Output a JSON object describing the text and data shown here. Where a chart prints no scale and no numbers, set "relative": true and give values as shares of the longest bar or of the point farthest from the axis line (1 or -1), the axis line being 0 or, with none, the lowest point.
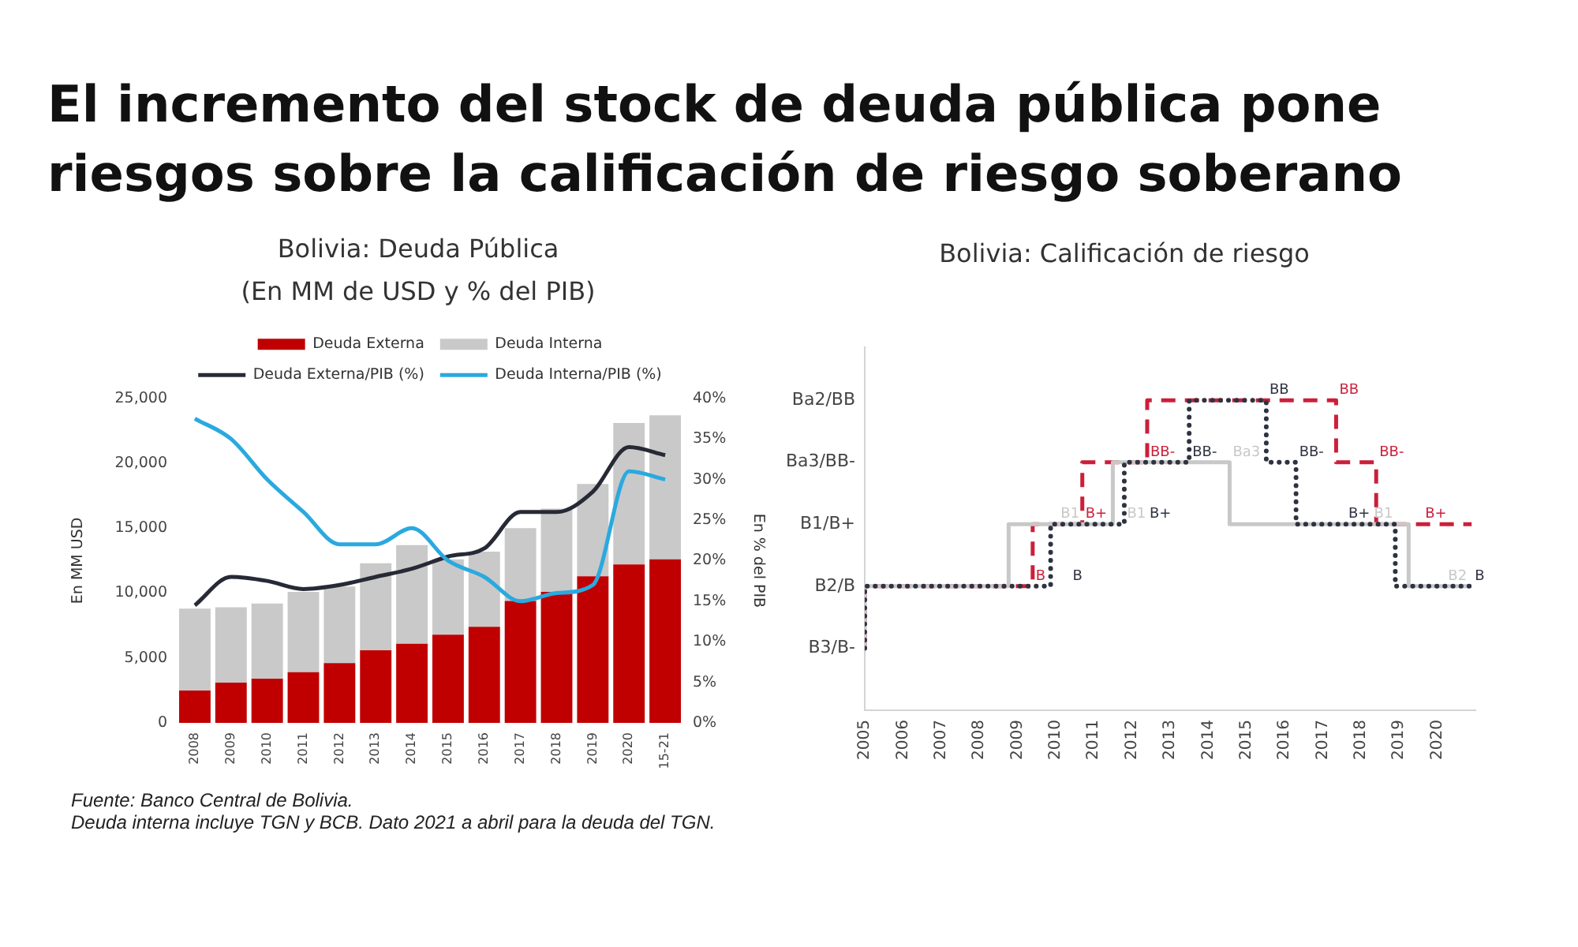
{
  "chart_data": [
    {
      "type": "other",
      "title": "El incremento del stock de deuda pública pone riesgos sobre la calificación de riesgo soberano"
    },
    {
      "type": "bar",
      "title": "Bolivia: Deuda Pública",
      "subtitle": "(En MM de USD y % del PIB)",
      "ylabel": "En MM USD",
      "y2label": "En % del PIB",
      "categories": [
        "2008",
        "2009",
        "2010",
        "2011",
        "2012",
        "2013",
        "2014",
        "2015",
        "2016",
        "2017",
        "2018",
        "2019",
        "2020",
        "15-21"
      ],
      "stacked": true,
      "legend": "top",
      "ylim": [
        0,
        25000
      ],
      "yticks": [
        0,
        {
          "value": 5000,
          "label": "5,000"
        },
        {
          "value": 10000,
          "label": "10,000"
        },
        {
          "value": 15000,
          "label": "15,000"
        },
        {
          "value": 20000,
          "label": "20,000"
        },
        {
          "value": 25000,
          "label": "25,000"
        }
      ],
      "y2lim": [
        0,
        40
      ],
      "y2ticks": [
        {
          "value": 0,
          "label": "0%"
        },
        {
          "value": 5,
          "label": "5%"
        },
        {
          "value": 10,
          "label": "10%"
        },
        {
          "value": 15,
          "label": "15%"
        },
        {
          "value": 20,
          "label": "20%"
        },
        {
          "value": 25,
          "label": "25%"
        },
        {
          "value": 30,
          "label": "30%"
        },
        {
          "value": 35,
          "label": "35%"
        },
        {
          "value": 40,
          "label": "40%"
        }
      ],
      "series": [
        {
          "name": "Deuda Externa",
          "color": "#c00000",
          "values": [
            2500,
            3100,
            3400,
            3900,
            4600,
            5600,
            6100,
            6800,
            7400,
            9400,
            10100,
            11300,
            12200,
            12600
          ]
        },
        {
          "name": "Deuda Interna",
          "color": "#c9c9c9",
          "values": [
            6300,
            5800,
            5800,
            6200,
            5900,
            6700,
            7600,
            5800,
            5800,
            5600,
            6400,
            7100,
            10900,
            11100
          ]
        },
        {
          "name": "Deuda Externa/PIB (%)",
          "type": "line",
          "axis": "y2",
          "color": "#272a36",
          "values": [
            14.5,
            18,
            17.5,
            16.5,
            17,
            18,
            19,
            20.5,
            21.5,
            26,
            26,
            28.5,
            34,
            33
          ]
        },
        {
          "name": "Deuda Interna/PIB (%)",
          "type": "line",
          "axis": "y2",
          "color": "#2aa9df",
          "values": [
            37.5,
            35,
            30,
            26,
            22,
            22,
            24,
            20,
            18,
            15,
            16,
            17,
            31,
            30
          ]
        }
      ],
      "annotations": [
        "Fuente: Banco Central de Bolivia.",
        "Deuda interna incluye TGN y BCB. Dato 2021 a abril para la deuda del TGN."
      ]
    },
    {
      "type": "step",
      "title": "Bolivia: Calificación de riesgo",
      "relative": true,
      "xlim": [
        2005,
        2021
      ],
      "xticks": [
        2005,
        2006,
        2007,
        2008,
        2009,
        2010,
        2011,
        2012,
        2013,
        2014,
        2015,
        2016,
        2017,
        2018,
        2019,
        2020
      ],
      "y_categories": [
        "Ba2/BB",
        "Ba3/BB-",
        "B1/B+",
        "B2/B",
        "B3/B-"
      ],
      "series": [
        {
          "color": "#cc1f3a",
          "line_style": "dashed",
          "x": [
            2005,
            2009.4,
            2010.4,
            2010.7,
            2011.45,
            2012.4,
            2013.4,
            2017.35,
            2017.35,
            2018.4,
            2019.3,
            2019.6,
            2020.9
          ],
          "values": [
            0.2,
            0.4,
            0.6,
            0.6,
            0.8,
            0.8,
            1,
            1,
            0.8,
            0.8,
            0.6,
            0.6,
            0.6
          ]
        },
        {
          "color": "#c8c8c8",
          "line_style": "solid",
          "x": [
            2005,
            2008.77,
            2010.05,
            2011.5,
            2011.5,
            2014.56,
            2019.25,
            2019.8,
            2020.2,
            2020.9
          ],
          "values": [
            0.2,
            0.4,
            0.6,
            0.6,
            0.8,
            0.8,
            0.6,
            0.4,
            0.4,
            0.4
          ]
        },
        {
          "color": "#2f3240",
          "line_style": "dotted",
          "x": [
            2005,
            2008.77,
            2009.87,
            2009.87,
            2011.8,
            2011.8,
            2013.5,
            2014.56,
            2015.52,
            2015.52,
            2016.3,
            2018.9,
            2019.8,
            2020.9
          ],
          "values": [
            0.2,
            0.4,
            0.4,
            0.6,
            0.6,
            0.8,
            0.8,
            1,
            1,
            0.8,
            0.8,
            0.6,
            0.4,
            0.4
          ]
        }
      ],
      "annotations": [
        {
          "text": "B",
          "x": 2009.4,
          "y": 0.4
        },
        {
          "text": "B+",
          "x": 2010.7,
          "y": 0.6
        },
        {
          "text": "BB-",
          "x": 2012.4,
          "y": 0.8
        },
        {
          "text": "BB",
          "x": 2017.35,
          "y": 1
        },
        {
          "text": "BB-",
          "x": 2018.4,
          "y": 0.8
        },
        {
          "text": "B+",
          "x": 2019.6,
          "y": 0.6
        },
        {
          "text": "B1",
          "x": 2010.05,
          "y": 0.6
        },
        {
          "text": "B1",
          "x": 2011.5,
          "y": 0.6
        },
        {
          "text": "Ba3",
          "x": 2014.56,
          "y": 0.8
        },
        {
          "text": "B1",
          "x": 2019.25,
          "y": 0.6
        },
        {
          "text": "B2",
          "x": 2020.2,
          "y": 0.4
        },
        {
          "text": "B",
          "x": 2009.87,
          "y": 0.4
        },
        {
          "text": "B+",
          "x": 2011.8,
          "y": 0.6
        },
        {
          "text": "BB-",
          "x": 2013.5,
          "y": 0.8
        },
        {
          "text": "BB",
          "x": 2015.52,
          "y": 1
        },
        {
          "text": "BB-",
          "x": 2016.3,
          "y": 0.8
        },
        {
          "text": "B+",
          "x": 2018.9,
          "y": 0.6
        },
        {
          "text": "B",
          "x": 2020.9,
          "y": 0.4
        }
      ]
    }
  ]
}
